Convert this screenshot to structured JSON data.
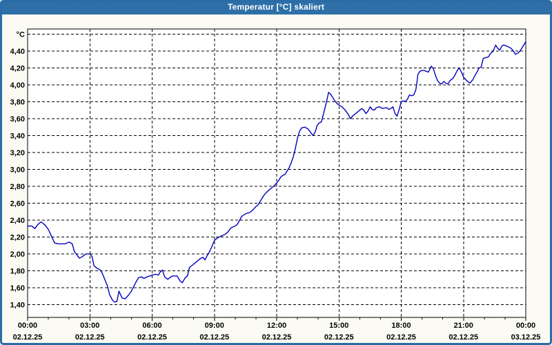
{
  "window": {
    "title": "Temperatur [°C] skaliert"
  },
  "colors": {
    "titlebar_bg": "#2a6ca6",
    "titlebar_text": "#ffffff",
    "window_frame": "#2a6ca6",
    "content_bg": "#fbfbf3",
    "plot_bg": "#ffffff",
    "grid": "#000000",
    "axis_text": "#000000",
    "series_line": "#0000bb"
  },
  "chart_data": {
    "type": "line",
    "title": "Temperatur [°C] skaliert",
    "y_unit_label": "°C",
    "xlabel": "",
    "ylabel": "°C",
    "xlim_hours": [
      0,
      24
    ],
    "ylim": [
      1.25,
      4.66
    ],
    "grid": "dashed",
    "legend": "none",
    "x_minor_step_hours": 1,
    "x_ticks": [
      {
        "hour": 0,
        "time": "00:00",
        "date": "02.12.25"
      },
      {
        "hour": 3,
        "time": "03:00",
        "date": "02.12.25"
      },
      {
        "hour": 6,
        "time": "06:00",
        "date": "02.12.25"
      },
      {
        "hour": 9,
        "time": "09:00",
        "date": "02.12.25"
      },
      {
        "hour": 12,
        "time": "12:00",
        "date": "02.12.25"
      },
      {
        "hour": 15,
        "time": "15:00",
        "date": "02.12.25"
      },
      {
        "hour": 18,
        "time": "18:00",
        "date": "02.12.25"
      },
      {
        "hour": 21,
        "time": "21:00",
        "date": "02.12.25"
      },
      {
        "hour": 24,
        "time": "00:00",
        "date": "03.12.25"
      }
    ],
    "y_ticks": [
      1.4,
      1.6,
      1.8,
      2.0,
      2.2,
      2.4,
      2.6,
      2.8,
      3.0,
      3.2,
      3.4,
      3.6,
      3.8,
      4.0,
      4.2,
      4.4
    ],
    "y_tick_labels": [
      "1,40",
      "1,60",
      "1,80",
      "2,00",
      "2,20",
      "2,40",
      "2,60",
      "2,80",
      "3,00",
      "3,20",
      "3,40",
      "3,60",
      "3,80",
      "4,00",
      "4,20",
      "4,40"
    ],
    "y_grid_values": [
      1.4,
      1.6,
      1.8,
      2.0,
      2.2,
      2.4,
      2.6,
      2.8,
      3.0,
      3.2,
      3.4,
      3.6,
      3.8,
      4.0,
      4.2,
      4.4,
      4.6
    ],
    "series": [
      {
        "name": "Temperatur",
        "color": "#0000bb",
        "points": [
          [
            0.0,
            2.33
          ],
          [
            0.2,
            2.33
          ],
          [
            0.35,
            2.3
          ],
          [
            0.5,
            2.35
          ],
          [
            0.65,
            2.38
          ],
          [
            0.85,
            2.34
          ],
          [
            1.0,
            2.29
          ],
          [
            1.15,
            2.21
          ],
          [
            1.3,
            2.13
          ],
          [
            1.5,
            2.12
          ],
          [
            1.8,
            2.12
          ],
          [
            2.0,
            2.14
          ],
          [
            2.15,
            2.12
          ],
          [
            2.25,
            2.03
          ],
          [
            2.4,
            1.98
          ],
          [
            2.5,
            1.95
          ],
          [
            2.65,
            1.97
          ],
          [
            2.8,
            2.0
          ],
          [
            3.0,
            2.0
          ],
          [
            3.1,
            1.97
          ],
          [
            3.2,
            1.86
          ],
          [
            3.35,
            1.83
          ],
          [
            3.5,
            1.81
          ],
          [
            3.6,
            1.77
          ],
          [
            3.7,
            1.71
          ],
          [
            3.85,
            1.62
          ],
          [
            3.95,
            1.52
          ],
          [
            4.1,
            1.45
          ],
          [
            4.2,
            1.43
          ],
          [
            4.3,
            1.44
          ],
          [
            4.4,
            1.56
          ],
          [
            4.55,
            1.48
          ],
          [
            4.7,
            1.47
          ],
          [
            4.85,
            1.51
          ],
          [
            5.0,
            1.56
          ],
          [
            5.1,
            1.61
          ],
          [
            5.25,
            1.68
          ],
          [
            5.35,
            1.72
          ],
          [
            5.5,
            1.73
          ],
          [
            5.6,
            1.71
          ],
          [
            5.75,
            1.73
          ],
          [
            5.9,
            1.74
          ],
          [
            6.0,
            1.75
          ],
          [
            6.15,
            1.76
          ],
          [
            6.3,
            1.75
          ],
          [
            6.4,
            1.79
          ],
          [
            6.5,
            1.81
          ],
          [
            6.6,
            1.73
          ],
          [
            6.75,
            1.7
          ],
          [
            6.9,
            1.73
          ],
          [
            7.0,
            1.74
          ],
          [
            7.2,
            1.74
          ],
          [
            7.35,
            1.68
          ],
          [
            7.45,
            1.66
          ],
          [
            7.6,
            1.72
          ],
          [
            7.7,
            1.74
          ],
          [
            7.8,
            1.84
          ],
          [
            7.95,
            1.87
          ],
          [
            8.1,
            1.9
          ],
          [
            8.25,
            1.93
          ],
          [
            8.35,
            1.95
          ],
          [
            8.45,
            1.96
          ],
          [
            8.55,
            1.93
          ],
          [
            8.65,
            1.98
          ],
          [
            8.75,
            2.02
          ],
          [
            8.85,
            2.07
          ],
          [
            9.0,
            2.16
          ],
          [
            9.15,
            2.19
          ],
          [
            9.3,
            2.21
          ],
          [
            9.5,
            2.23
          ],
          [
            9.65,
            2.26
          ],
          [
            9.8,
            2.31
          ],
          [
            10.0,
            2.33
          ],
          [
            10.1,
            2.35
          ],
          [
            10.2,
            2.39
          ],
          [
            10.3,
            2.44
          ],
          [
            10.4,
            2.46
          ],
          [
            10.55,
            2.48
          ],
          [
            10.7,
            2.49
          ],
          [
            10.85,
            2.52
          ],
          [
            11.0,
            2.56
          ],
          [
            11.1,
            2.58
          ],
          [
            11.2,
            2.62
          ],
          [
            11.3,
            2.66
          ],
          [
            11.4,
            2.7
          ],
          [
            11.55,
            2.74
          ],
          [
            11.65,
            2.76
          ],
          [
            11.75,
            2.78
          ],
          [
            11.85,
            2.8
          ],
          [
            12.0,
            2.84
          ],
          [
            12.1,
            2.87
          ],
          [
            12.2,
            2.91
          ],
          [
            12.3,
            2.93
          ],
          [
            12.4,
            2.94
          ],
          [
            12.5,
            2.98
          ],
          [
            12.6,
            3.02
          ],
          [
            12.7,
            3.08
          ],
          [
            12.8,
            3.15
          ],
          [
            12.9,
            3.25
          ],
          [
            13.0,
            3.37
          ],
          [
            13.1,
            3.45
          ],
          [
            13.2,
            3.49
          ],
          [
            13.35,
            3.5
          ],
          [
            13.5,
            3.48
          ],
          [
            13.6,
            3.45
          ],
          [
            13.75,
            3.4
          ],
          [
            13.85,
            3.44
          ],
          [
            13.95,
            3.52
          ],
          [
            14.05,
            3.55
          ],
          [
            14.15,
            3.56
          ],
          [
            14.3,
            3.7
          ],
          [
            14.4,
            3.8
          ],
          [
            14.5,
            3.91
          ],
          [
            14.6,
            3.89
          ],
          [
            14.7,
            3.85
          ],
          [
            14.8,
            3.81
          ],
          [
            14.9,
            3.78
          ],
          [
            15.0,
            3.76
          ],
          [
            15.15,
            3.74
          ],
          [
            15.3,
            3.7
          ],
          [
            15.45,
            3.65
          ],
          [
            15.55,
            3.6
          ],
          [
            15.7,
            3.64
          ],
          [
            15.85,
            3.67
          ],
          [
            16.0,
            3.7
          ],
          [
            16.1,
            3.72
          ],
          [
            16.2,
            3.7
          ],
          [
            16.3,
            3.66
          ],
          [
            16.4,
            3.69
          ],
          [
            16.5,
            3.74
          ],
          [
            16.6,
            3.71
          ],
          [
            16.7,
            3.7
          ],
          [
            16.8,
            3.73
          ],
          [
            16.95,
            3.74
          ],
          [
            17.1,
            3.72
          ],
          [
            17.3,
            3.73
          ],
          [
            17.4,
            3.71
          ],
          [
            17.5,
            3.72
          ],
          [
            17.6,
            3.74
          ],
          [
            17.7,
            3.66
          ],
          [
            17.8,
            3.63
          ],
          [
            17.9,
            3.71
          ],
          [
            18.0,
            3.8
          ],
          [
            18.1,
            3.81
          ],
          [
            18.2,
            3.8
          ],
          [
            18.3,
            3.83
          ],
          [
            18.4,
            3.88
          ],
          [
            18.5,
            3.87
          ],
          [
            18.6,
            3.88
          ],
          [
            18.7,
            3.94
          ],
          [
            18.75,
            4.02
          ],
          [
            18.8,
            4.12
          ],
          [
            18.9,
            4.16
          ],
          [
            19.0,
            4.17
          ],
          [
            19.1,
            4.17
          ],
          [
            19.2,
            4.16
          ],
          [
            19.3,
            4.15
          ],
          [
            19.35,
            4.17
          ],
          [
            19.45,
            4.22
          ],
          [
            19.55,
            4.19
          ],
          [
            19.65,
            4.11
          ],
          [
            19.75,
            4.05
          ],
          [
            19.85,
            4.02
          ],
          [
            19.95,
            4.01
          ],
          [
            20.05,
            4.04
          ],
          [
            20.15,
            4.02
          ],
          [
            20.25,
            4.01
          ],
          [
            20.35,
            4.05
          ],
          [
            20.5,
            4.08
          ],
          [
            20.6,
            4.12
          ],
          [
            20.7,
            4.17
          ],
          [
            20.8,
            4.2
          ],
          [
            20.9,
            4.15
          ],
          [
            21.0,
            4.09
          ],
          [
            21.15,
            4.05
          ],
          [
            21.3,
            4.02
          ],
          [
            21.45,
            4.06
          ],
          [
            21.55,
            4.11
          ],
          [
            21.65,
            4.15
          ],
          [
            21.75,
            4.2
          ],
          [
            21.85,
            4.21
          ],
          [
            21.95,
            4.31
          ],
          [
            22.05,
            4.32
          ],
          [
            22.2,
            4.33
          ],
          [
            22.3,
            4.37
          ],
          [
            22.4,
            4.39
          ],
          [
            22.45,
            4.41
          ],
          [
            22.55,
            4.47
          ],
          [
            22.65,
            4.43
          ],
          [
            22.75,
            4.41
          ],
          [
            22.85,
            4.46
          ],
          [
            22.95,
            4.47
          ],
          [
            23.05,
            4.46
          ],
          [
            23.15,
            4.45
          ],
          [
            23.3,
            4.43
          ],
          [
            23.4,
            4.4
          ],
          [
            23.5,
            4.36
          ],
          [
            23.65,
            4.38
          ],
          [
            23.75,
            4.41
          ],
          [
            23.85,
            4.45
          ],
          [
            23.95,
            4.49
          ],
          [
            24.0,
            4.51
          ]
        ]
      }
    ]
  }
}
